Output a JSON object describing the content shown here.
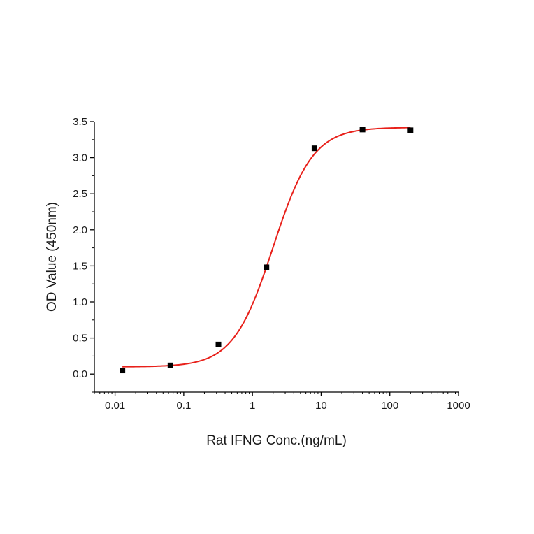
{
  "chart_data": {
    "type": "scatter",
    "title": "",
    "xlabel": "Rat IFNG Conc.(ng/mL)",
    "ylabel": "OD Value (450nm)",
    "x_scale": "log",
    "xlim": [
      0.005,
      1000
    ],
    "ylim": [
      -0.25,
      3.5
    ],
    "x_ticks": [
      0.01,
      0.1,
      1,
      10,
      100,
      1000
    ],
    "x_tick_labels": [
      "0.01",
      "0.1",
      "1",
      "10",
      "100",
      "1000"
    ],
    "y_ticks": [
      0.0,
      0.5,
      1.0,
      1.5,
      2.0,
      2.5,
      3.0,
      3.5
    ],
    "y_tick_labels": [
      "0.0",
      "0.5",
      "1.0",
      "1.5",
      "2.0",
      "2.5",
      "3.0",
      "3.5"
    ],
    "grid": false,
    "legend": "none",
    "series": [
      {
        "type": "scatter",
        "marker": "square",
        "color": "#000000",
        "x": [
          0.0128,
          0.064,
          0.32,
          1.6,
          8,
          40,
          200
        ],
        "y": [
          0.05,
          0.12,
          0.41,
          1.48,
          3.13,
          3.39,
          3.38
        ]
      },
      {
        "type": "line",
        "fit": "4PL",
        "color": "#e8201a",
        "params": {
          "bottom": 0.1,
          "top": 3.42,
          "ec50": 2.0,
          "hill": 1.5
        },
        "x_range": [
          0.0128,
          200
        ]
      }
    ]
  }
}
